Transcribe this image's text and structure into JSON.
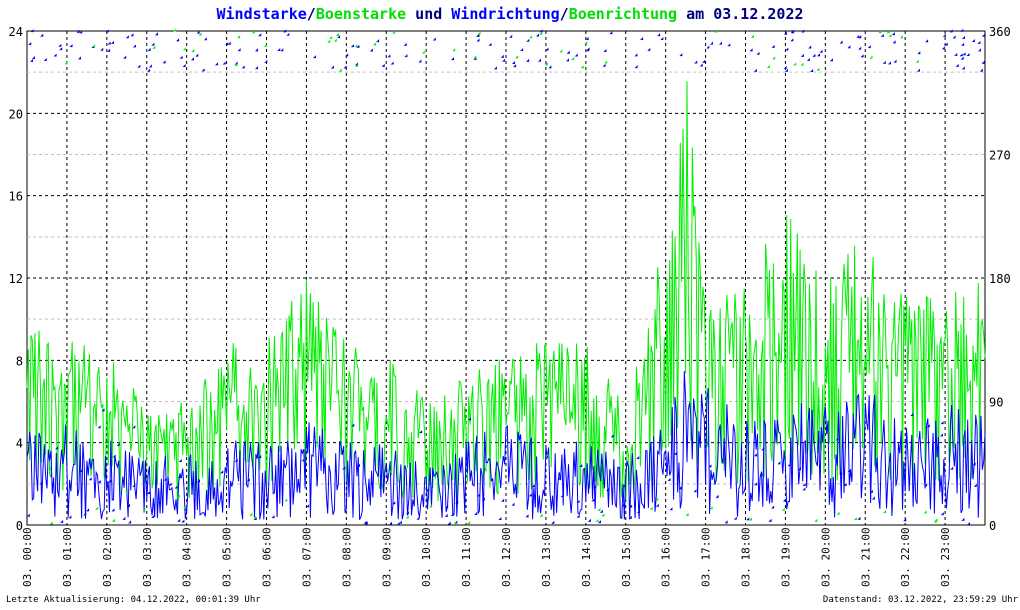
{
  "title_parts": {
    "p1": "Windstarke",
    "sep1": "/",
    "p2": "Boenstarke",
    "mid": " und ",
    "p3": "Windrichtung",
    "sep2": "/",
    "p4": "Boenrichtung",
    "date": " am 03.12.2022"
  },
  "colors": {
    "wind": "#0000ff",
    "gust": "#00ee00",
    "title_dark": "#000080",
    "grid": "#000000",
    "text": "#000000",
    "background": "#ffffff"
  },
  "footer": {
    "left": "Letzte Aktualisierung: 04.12.2022, 00:01:39 Uhr",
    "right": "Datenstand: 03.12.2022, 23:59:29 Uhr"
  },
  "chart_data": {
    "type": "line",
    "y_left": {
      "min": 0,
      "max": 24,
      "ticks": [
        0,
        4,
        8,
        12,
        16,
        20,
        24
      ]
    },
    "y_right": {
      "min": 0,
      "max": 360,
      "ticks": [
        0,
        90,
        180,
        270,
        360
      ]
    },
    "x_range_hours": [
      0,
      24
    ],
    "x_tick_labels": [
      "03. 00:00",
      "03. 01:00",
      "03. 02:00",
      "03. 03:00",
      "03. 04:00",
      "03. 05:00",
      "03. 06:00",
      "03. 07:00",
      "03. 08:00",
      "03. 09:00",
      "03. 10:00",
      "03. 11:00",
      "03. 12:00",
      "03. 13:00",
      "03. 14:00",
      "03. 15:00",
      "03. 16:00",
      "03. 17:00",
      "03. 18:00",
      "03. 19:00",
      "03. 20:00",
      "03. 21:00",
      "03. 22:00",
      "03. 23:00"
    ],
    "grid": true,
    "series": [
      {
        "name": "Windstarke",
        "axis": "left",
        "style": "line",
        "hours": [
          0,
          1,
          2,
          3,
          4,
          5,
          6,
          7,
          8,
          9,
          10,
          11,
          12,
          13,
          14,
          15,
          16,
          16.5,
          17,
          18,
          19,
          20,
          21,
          22,
          23,
          24
        ],
        "values": [
          3,
          3,
          2.5,
          2,
          2,
          2.5,
          2.5,
          3,
          2.5,
          2.5,
          2,
          2.5,
          3,
          2.5,
          2.5,
          2,
          3,
          4.5,
          4,
          3,
          3.5,
          3.5,
          4,
          3,
          3.5,
          3.5
        ]
      },
      {
        "name": "Boenstarke",
        "axis": "left",
        "style": "line",
        "hours": [
          0,
          1,
          2,
          3,
          4,
          5,
          6,
          7,
          8,
          9,
          10,
          11,
          12,
          13,
          14,
          15,
          16,
          16.5,
          17,
          18,
          19,
          20,
          21,
          22,
          23,
          24
        ],
        "values": [
          8.5,
          7.5,
          7,
          5,
          5,
          7.5,
          7.5,
          10,
          7.5,
          7.5,
          5,
          6,
          7.5,
          7.5,
          7.5,
          5,
          12,
          20,
          9.5,
          10,
          13,
          10,
          12,
          9.5,
          10,
          10
        ]
      },
      {
        "name": "Windrichtung",
        "axis": "right",
        "style": "points",
        "note_values_deg": {
          "typical_high": [
            330,
            360
          ],
          "typical_low": [
            0,
            90
          ]
        }
      },
      {
        "name": "Boenrichtung",
        "axis": "right",
        "style": "points",
        "note_values_deg": {
          "typical_high": [
            330,
            360
          ],
          "typical_low": [
            0,
            60
          ]
        }
      }
    ]
  }
}
